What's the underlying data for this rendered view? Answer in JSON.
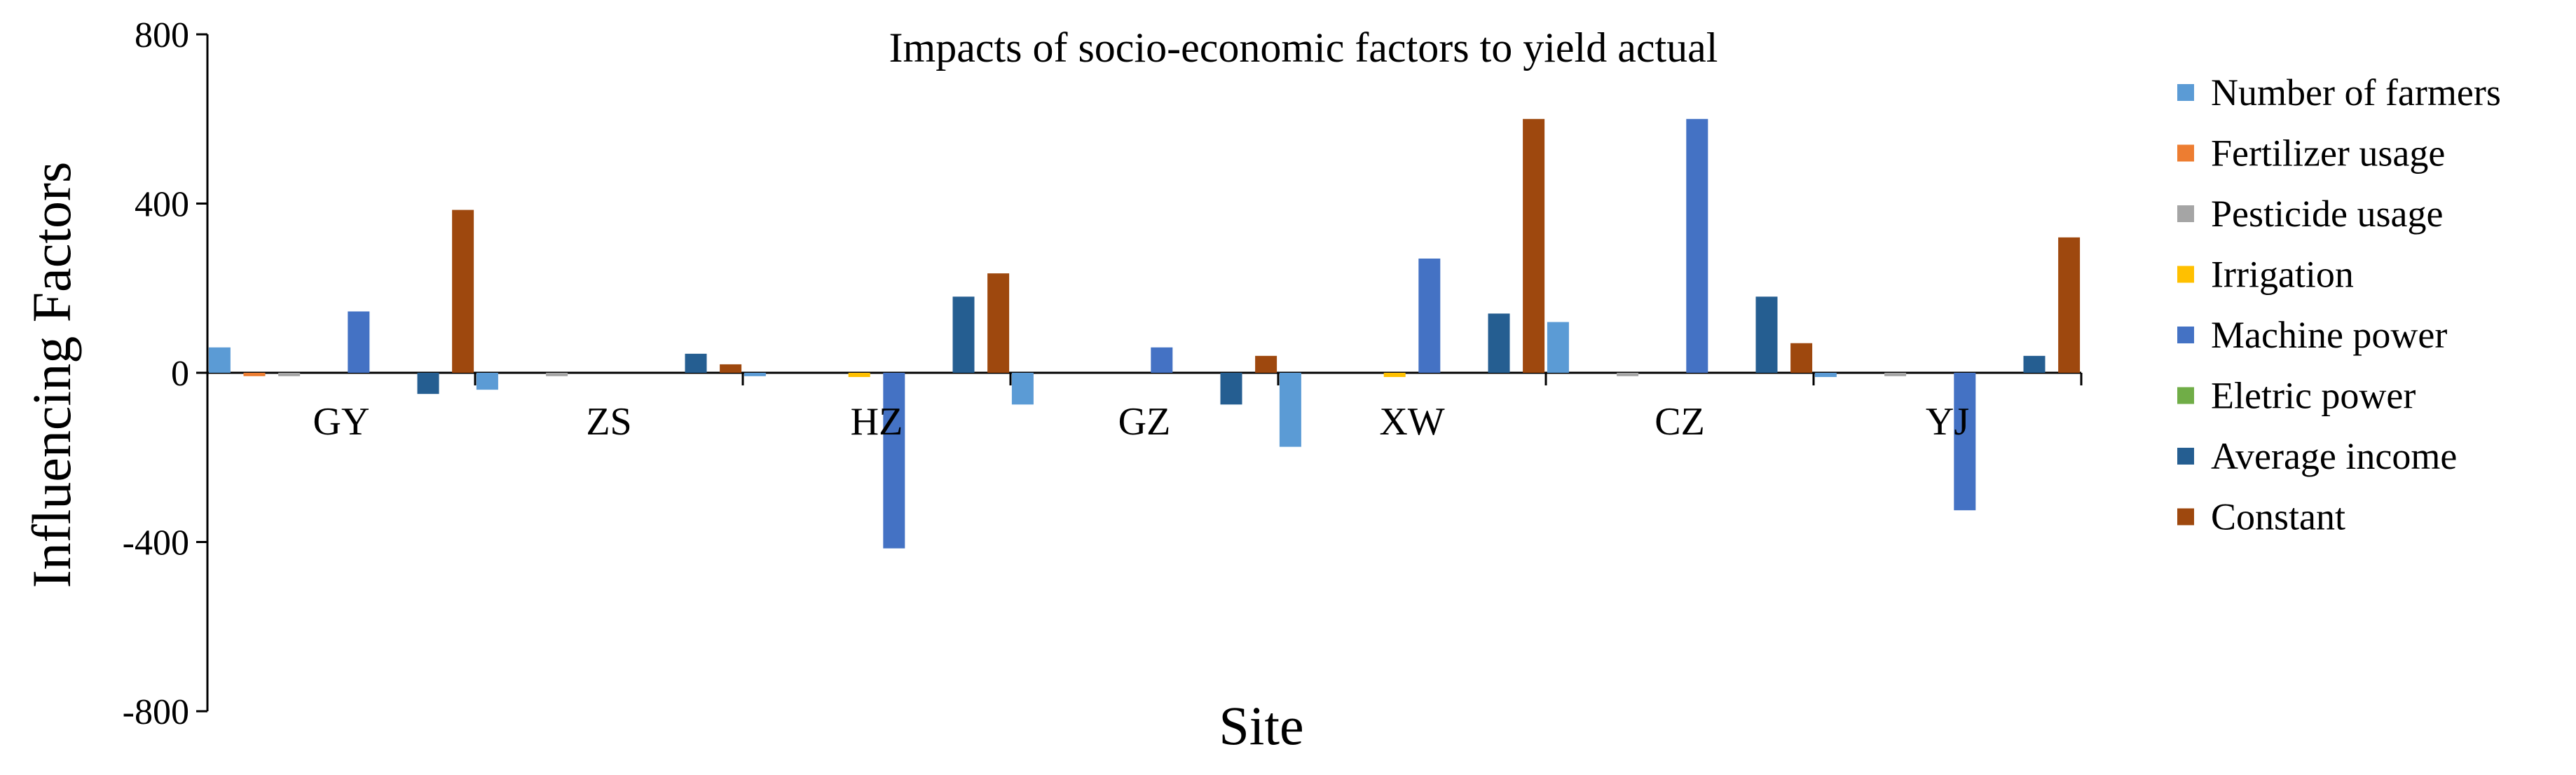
{
  "chart_data": {
    "type": "bar",
    "title": "Impacts of socio-economic factors to yield actual",
    "xlabel": "Site",
    "ylabel": "Influencing  Factors",
    "ylim": [
      -800,
      800
    ],
    "yticks": [
      -800,
      -400,
      0,
      400,
      800
    ],
    "ytick_labels": [
      "-800",
      "-400",
      "0",
      "400",
      "800"
    ],
    "categories": [
      "GY",
      "ZS",
      "HZ",
      "GZ",
      "XW",
      "CZ",
      "YJ"
    ],
    "legend_position": "right",
    "series": [
      {
        "name": "Number of farmers",
        "color": "#5B9BD5",
        "values": [
          60,
          -40,
          -8,
          -75,
          -175,
          120,
          -10
        ]
      },
      {
        "name": "Fertilizer usage",
        "color": "#ED7D31",
        "values": [
          -8,
          0,
          0,
          0,
          0,
          0,
          0
        ]
      },
      {
        "name": "Pesticide usage",
        "color": "#A5A5A5",
        "values": [
          -8,
          -8,
          0,
          0,
          0,
          -8,
          -8
        ]
      },
      {
        "name": "Irrigation",
        "color": "#FFC000",
        "values": [
          0,
          0,
          -10,
          0,
          -10,
          0,
          0
        ]
      },
      {
        "name": "Machine power",
        "color": "#4472C4",
        "values": [
          145,
          0,
          -415,
          60,
          270,
          600,
          -325
        ]
      },
      {
        "name": "Eletric power",
        "color": "#70AD47",
        "values": [
          0,
          0,
          0,
          0,
          0,
          0,
          0
        ]
      },
      {
        "name": "Average income",
        "color": "#255E91",
        "values": [
          -50,
          45,
          180,
          -75,
          140,
          180,
          40
        ]
      },
      {
        "name": "Constant",
        "color": "#9E480E",
        "values": [
          385,
          20,
          235,
          40,
          600,
          70,
          320
        ]
      }
    ]
  }
}
